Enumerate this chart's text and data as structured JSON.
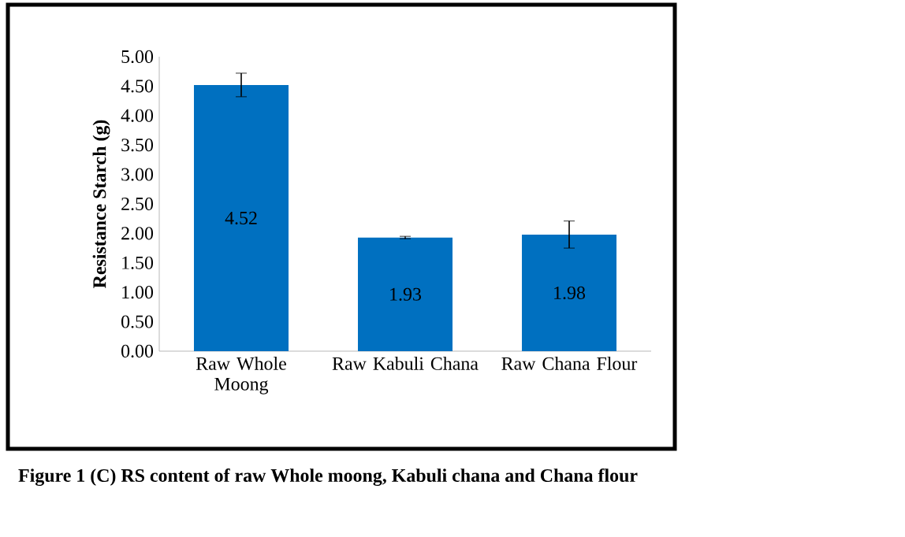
{
  "chart_data": {
    "type": "bar",
    "ylabel": "Resistance Starch (g)",
    "categories": [
      "Raw Whole Moong",
      "Raw Kabuli Chana",
      "Raw Chana Flour"
    ],
    "values": [
      4.52,
      1.93,
      1.98
    ],
    "errors": [
      0.2,
      0.02,
      0.23
    ],
    "color": "#0070c0",
    "ylim": [
      0,
      5
    ],
    "yticks": [
      {
        "value": 0,
        "label": "0.00"
      },
      {
        "value": 0.5,
        "label": "0.50"
      },
      {
        "value": 1,
        "label": "1.00"
      },
      {
        "value": 1.5,
        "label": "1.50"
      },
      {
        "value": 2,
        "label": "2.00"
      },
      {
        "value": 2.5,
        "label": "2.50"
      },
      {
        "value": 3,
        "label": "3.00"
      },
      {
        "value": 3.5,
        "label": "3.50"
      },
      {
        "value": 4,
        "label": "4.00"
      },
      {
        "value": 4.5,
        "label": "4.50"
      },
      {
        "value": 5,
        "label": "5.00"
      }
    ],
    "data_labels": true,
    "grid": false,
    "annotations": [
      "Figure 1 (C) RS content of raw Whole moong, Kabuli chana and Chana flour"
    ]
  }
}
